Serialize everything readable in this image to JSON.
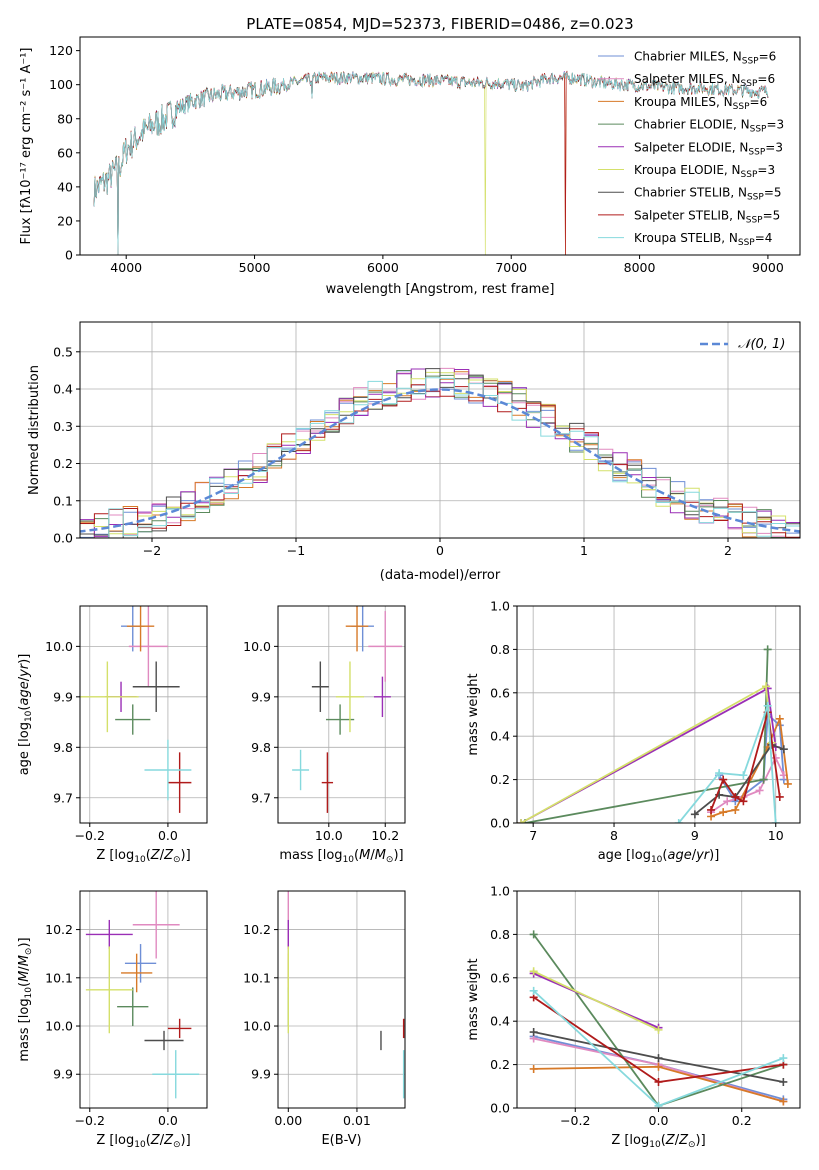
{
  "figure_title": "PLATE=0854, MJD=52373, FIBERID=0486, z=0.023",
  "models": [
    {
      "name": "Chabrier MILES",
      "color": "#6f8fd6",
      "legend": [
        "Chabrier MILES, N",
        "SSP",
        "=6"
      ]
    },
    {
      "name": "Salpeter MILES",
      "color": "#e08ac0",
      "legend": [
        "Salpeter MILES, N",
        "SSP",
        "=6"
      ]
    },
    {
      "name": "Kroupa MILES",
      "color": "#d77a28",
      "legend": [
        "Kroupa MILES, N",
        "SSP",
        "=6"
      ]
    },
    {
      "name": "Chabrier ELODIE",
      "color": "#5b8a5d",
      "legend": [
        "Chabrier ELODIE, N",
        "SSP",
        "=3"
      ]
    },
    {
      "name": "Salpeter ELODIE",
      "color": "#9a2fb6",
      "legend": [
        "Salpeter ELODIE, N",
        "SSP",
        "=3"
      ]
    },
    {
      "name": "Kroupa ELODIE",
      "color": "#d4e06a",
      "legend": [
        "Kroupa ELODIE, N",
        "SSP",
        "=3"
      ]
    },
    {
      "name": "Chabrier STELIB",
      "color": "#4d4d4d",
      "legend": [
        "Chabrier STELIB, N",
        "SSP",
        "=5"
      ]
    },
    {
      "name": "Salpeter STELIB",
      "color": "#b01b1b",
      "legend": [
        "Salpeter STELIB, N",
        "SSP",
        "=5"
      ]
    },
    {
      "name": "Kroupa STELIB",
      "color": "#86d9dd",
      "legend": [
        "Kroupa STELIB, N",
        "SSP",
        "=4"
      ]
    }
  ],
  "chart_data": [
    {
      "id": "spectrum",
      "type": "line",
      "title": "PLATE=0854, MJD=52373, FIBERID=0486, z=0.023",
      "xlabel": "wavelength [Angstrom, rest frame]",
      "ylabel": "Flux [fλ10⁻¹⁷ erg cm⁻² s⁻¹ A⁻¹]",
      "xlim": [
        3640,
        9250
      ],
      "ylim": [
        0,
        128
      ],
      "xticks": [
        4000,
        5000,
        6000,
        7000,
        8000,
        9000
      ],
      "yticks": [
        0,
        20,
        40,
        60,
        80,
        100,
        120
      ],
      "continuum": [
        [
          3750,
          38
        ],
        [
          3850,
          44
        ],
        [
          3950,
          52
        ],
        [
          4000,
          62
        ],
        [
          4100,
          70
        ],
        [
          4200,
          76
        ],
        [
          4300,
          80
        ],
        [
          4400,
          86
        ],
        [
          4500,
          90
        ],
        [
          4700,
          94
        ],
        [
          4900,
          96
        ],
        [
          5100,
          98
        ],
        [
          5300,
          101
        ],
        [
          5500,
          104
        ],
        [
          5700,
          104
        ],
        [
          5900,
          104
        ],
        [
          6100,
          103
        ],
        [
          6300,
          103
        ],
        [
          6500,
          102
        ],
        [
          6700,
          101
        ],
        [
          6900,
          101
        ],
        [
          7100,
          99
        ],
        [
          7300,
          104
        ],
        [
          7500,
          104
        ],
        [
          7700,
          101
        ],
        [
          7900,
          100
        ],
        [
          8100,
          99
        ],
        [
          8300,
          98
        ],
        [
          8500,
          98
        ],
        [
          8700,
          97
        ],
        [
          8900,
          96
        ],
        [
          9000,
          96
        ]
      ],
      "dips": [
        [
          3934,
          0
        ],
        [
          5450,
          92
        ],
        [
          6800,
          0
        ],
        [
          7420,
          0
        ]
      ],
      "legend_loc": "upper right"
    },
    {
      "id": "residuals",
      "type": "histogram",
      "xlabel": "(data-model)/error",
      "ylabel": "Normed distribution",
      "xlim": [
        -2.5,
        2.5
      ],
      "ylim": [
        0,
        0.58
      ],
      "xticks": [
        -2,
        -1,
        0,
        1,
        2
      ],
      "yticks": [
        0.0,
        0.1,
        0.2,
        0.3,
        0.4,
        0.5
      ],
      "bin_width": 0.1,
      "reference_curve": {
        "label": "𝒩(0, 1)",
        "mean": 0,
        "sigma": 1
      },
      "legend_loc": "upper right"
    },
    {
      "id": "age_vs_Z",
      "type": "errorbar",
      "xlabel": "Z [log10(Z/Z⊙)]",
      "ylabel": "age [log10(age/yr)]",
      "xlim": [
        -0.225,
        0.1
      ],
      "ylim": [
        9.65,
        10.08
      ],
      "xticks": [
        -0.2,
        0.0
      ],
      "yticks": [
        9.7,
        9.8,
        9.9,
        10.0
      ],
      "points": [
        {
          "m": 0,
          "x": -0.09,
          "y": 10.04,
          "xerr": 0.03,
          "yerr": 0.05
        },
        {
          "m": 1,
          "x": -0.05,
          "y": 10.0,
          "xerr": 0.05,
          "yerr": 0.08
        },
        {
          "m": 2,
          "x": -0.07,
          "y": 10.04,
          "xerr": 0.035,
          "yerr": 0.05
        },
        {
          "m": 3,
          "x": -0.09,
          "y": 9.855,
          "xerr": 0.045,
          "yerr": 0.03
        },
        {
          "m": 4,
          "x": -0.12,
          "y": 9.9,
          "xerr": 0.04,
          "yerr": 0.03
        },
        {
          "m": 5,
          "x": -0.155,
          "y": 9.9,
          "xerr": 0.08,
          "yerr": 0.07
        },
        {
          "m": 6,
          "x": -0.03,
          "y": 9.92,
          "xerr": 0.06,
          "yerr": 0.05
        },
        {
          "m": 7,
          "x": 0.03,
          "y": 9.73,
          "xerr": 0.03,
          "yerr": 0.06
        },
        {
          "m": 8,
          "x": 0.0,
          "y": 9.755,
          "xerr": 0.06,
          "yerr": 0.06
        }
      ]
    },
    {
      "id": "age_vs_mass",
      "type": "errorbar",
      "xlabel": "mass [log10(M/M⊙)]",
      "ylabel": "",
      "xlim": [
        9.82,
        10.27
      ],
      "ylim": [
        9.65,
        10.08
      ],
      "xticks": [
        10.0,
        10.2
      ],
      "yticks": [
        9.7,
        9.8,
        9.9,
        10.0
      ],
      "points": [
        {
          "m": 0,
          "x": 10.12,
          "y": 10.04,
          "xerr": 0.04,
          "yerr": 0.05
        },
        {
          "m": 1,
          "x": 10.2,
          "y": 10.0,
          "xerr": 0.06,
          "yerr": 0.07
        },
        {
          "m": 2,
          "x": 10.1,
          "y": 10.04,
          "xerr": 0.04,
          "yerr": 0.05
        },
        {
          "m": 3,
          "x": 10.04,
          "y": 9.855,
          "xerr": 0.05,
          "yerr": 0.03
        },
        {
          "m": 4,
          "x": 10.19,
          "y": 9.9,
          "xerr": 0.03,
          "yerr": 0.04
        },
        {
          "m": 5,
          "x": 10.075,
          "y": 9.9,
          "xerr": 0.05,
          "yerr": 0.07
        },
        {
          "m": 6,
          "x": 9.97,
          "y": 9.92,
          "xerr": 0.03,
          "yerr": 0.05
        },
        {
          "m": 7,
          "x": 9.995,
          "y": 9.73,
          "xerr": 0.02,
          "yerr": 0.06
        },
        {
          "m": 8,
          "x": 9.9,
          "y": 9.755,
          "xerr": 0.03,
          "yerr": 0.04
        }
      ]
    },
    {
      "id": "weight_vs_age",
      "type": "line",
      "xlabel": "age [log10(age/yr)]",
      "ylabel": "mass weight",
      "xlim": [
        6.8,
        10.3
      ],
      "ylim": [
        0,
        1.0
      ],
      "xticks": [
        7,
        8,
        9,
        10
      ],
      "yticks": [
        0.0,
        0.2,
        0.4,
        0.6,
        0.8,
        1.0
      ],
      "series": [
        {
          "m": 0,
          "points": [
            [
              9.3,
              0.22
            ],
            [
              9.5,
              0.1
            ],
            [
              9.85,
              0.2
            ],
            [
              9.9,
              0.5
            ],
            [
              10.05,
              0.45
            ],
            [
              10.1,
              0.2
            ]
          ]
        },
        {
          "m": 1,
          "points": [
            [
              9.2,
              0.05
            ],
            [
              9.4,
              0.1
            ],
            [
              9.6,
              0.12
            ],
            [
              9.8,
              0.15
            ],
            [
              10.0,
              0.3
            ],
            [
              10.1,
              0.22
            ]
          ]
        },
        {
          "m": 2,
          "points": [
            [
              9.2,
              0.03
            ],
            [
              9.35,
              0.05
            ],
            [
              9.5,
              0.06
            ],
            [
              9.9,
              0.35
            ],
            [
              10.05,
              0.48
            ],
            [
              10.15,
              0.18
            ]
          ]
        },
        {
          "m": 3,
          "points": [
            [
              6.9,
              0.0
            ],
            [
              9.85,
              0.2
            ],
            [
              9.9,
              0.8
            ]
          ]
        },
        {
          "m": 4,
          "points": [
            [
              6.85,
              0.0
            ],
            [
              9.9,
              0.62
            ],
            [
              10.0,
              0.35
            ]
          ]
        },
        {
          "m": 5,
          "points": [
            [
              6.85,
              0.0
            ],
            [
              9.88,
              0.63
            ],
            [
              9.95,
              0.37
            ]
          ]
        },
        {
          "m": 6,
          "points": [
            [
              9.0,
              0.04
            ],
            [
              9.3,
              0.13
            ],
            [
              9.5,
              0.12
            ],
            [
              9.95,
              0.36
            ],
            [
              10.1,
              0.34
            ]
          ]
        },
        {
          "m": 7,
          "points": [
            [
              9.2,
              0.06
            ],
            [
              9.35,
              0.2
            ],
            [
              9.5,
              0.12
            ],
            [
              9.6,
              0.1
            ],
            [
              9.9,
              0.51
            ],
            [
              10.05,
              0.12
            ]
          ]
        },
        {
          "m": 8,
          "points": [
            [
              8.8,
              0.0
            ],
            [
              9.3,
              0.23
            ],
            [
              9.6,
              0.22
            ],
            [
              9.9,
              0.54
            ],
            [
              10.0,
              0.0
            ]
          ]
        }
      ]
    },
    {
      "id": "mass_vs_Z",
      "type": "errorbar",
      "xlabel": "Z [log10(Z/Z⊙)]",
      "ylabel": "mass [log10(M/M⊙)]",
      "xlim": [
        -0.225,
        0.1
      ],
      "ylim": [
        9.83,
        10.28
      ],
      "xticks": [
        -0.2,
        0.0
      ],
      "yticks": [
        9.9,
        10.0,
        10.1,
        10.2
      ],
      "points": [
        {
          "m": 0,
          "x": -0.07,
          "y": 10.13,
          "xerr": 0.04,
          "yerr": 0.04
        },
        {
          "m": 1,
          "x": -0.03,
          "y": 10.21,
          "xerr": 0.06,
          "yerr": 0.07
        },
        {
          "m": 2,
          "x": -0.08,
          "y": 10.11,
          "xerr": 0.04,
          "yerr": 0.04
        },
        {
          "m": 3,
          "x": -0.09,
          "y": 10.04,
          "xerr": 0.04,
          "yerr": 0.04
        },
        {
          "m": 4,
          "x": -0.15,
          "y": 10.19,
          "xerr": 0.06,
          "yerr": 0.03
        },
        {
          "m": 5,
          "x": -0.15,
          "y": 10.075,
          "xerr": 0.06,
          "yerr": 0.09
        },
        {
          "m": 6,
          "x": -0.01,
          "y": 9.97,
          "xerr": 0.05,
          "yerr": 0.02
        },
        {
          "m": 7,
          "x": 0.03,
          "y": 9.995,
          "xerr": 0.03,
          "yerr": 0.02
        },
        {
          "m": 8,
          "x": 0.02,
          "y": 9.9,
          "xerr": 0.06,
          "yerr": 0.05
        }
      ]
    },
    {
      "id": "mass_vs_EBV",
      "type": "errorbar",
      "xlabel": "E(B-V)",
      "ylabel": "",
      "xlim": [
        -0.0015,
        0.017
      ],
      "ylim": [
        9.83,
        10.28
      ],
      "xticks": [
        0.0,
        0.01
      ],
      "yticks": [
        9.9,
        10.0,
        10.1,
        10.2
      ],
      "points": [
        {
          "m": 0,
          "x": 0.0,
          "y": 10.13,
          "xerr": 0.0,
          "yerr": 0.04
        },
        {
          "m": 1,
          "x": 0.0,
          "y": 10.21,
          "xerr": 0.0,
          "yerr": 0.07
        },
        {
          "m": 2,
          "x": 0.0,
          "y": 10.11,
          "xerr": 0.0,
          "yerr": 0.04
        },
        {
          "m": 3,
          "x": 0.0,
          "y": 10.04,
          "xerr": 0.0,
          "yerr": 0.04
        },
        {
          "m": 4,
          "x": 0.0,
          "y": 10.19,
          "xerr": 0.0,
          "yerr": 0.03
        },
        {
          "m": 5,
          "x": 0.0,
          "y": 10.075,
          "xerr": 0.0,
          "yerr": 0.09
        },
        {
          "m": 6,
          "x": 0.0135,
          "y": 9.97,
          "xerr": 0.0,
          "yerr": 0.02
        },
        {
          "m": 7,
          "x": 0.0168,
          "y": 9.995,
          "xerr": 0.0,
          "yerr": 0.02
        },
        {
          "m": 8,
          "x": 0.0168,
          "y": 9.9,
          "xerr": 0.0,
          "yerr": 0.05
        }
      ]
    },
    {
      "id": "weight_vs_Z",
      "type": "line",
      "xlabel": "Z [log10(Z/Z⊙)]",
      "ylabel": "mass weight",
      "xlim": [
        -0.34,
        0.34
      ],
      "ylim": [
        0,
        1.0
      ],
      "xticks": [
        -0.2,
        0.0,
        0.2
      ],
      "yticks": [
        0.0,
        0.2,
        0.4,
        0.6,
        0.8,
        1.0
      ],
      "series": [
        {
          "m": 0,
          "points": [
            [
              -0.3,
              0.33
            ],
            [
              0.0,
              0.2
            ],
            [
              0.3,
              0.04
            ]
          ]
        },
        {
          "m": 1,
          "points": [
            [
              -0.3,
              0.32
            ],
            [
              0.0,
              0.2
            ],
            [
              0.3,
              0.03
            ]
          ]
        },
        {
          "m": 2,
          "points": [
            [
              -0.3,
              0.18
            ],
            [
              0.0,
              0.19
            ],
            [
              0.3,
              0.03
            ]
          ]
        },
        {
          "m": 3,
          "points": [
            [
              -0.3,
              0.8
            ],
            [
              0.0,
              0.01
            ],
            [
              0.3,
              0.2
            ]
          ]
        },
        {
          "m": 4,
          "points": [
            [
              -0.3,
              0.62
            ],
            [
              0.0,
              0.37
            ]
          ]
        },
        {
          "m": 5,
          "points": [
            [
              -0.3,
              0.63
            ],
            [
              0.0,
              0.36
            ]
          ]
        },
        {
          "m": 6,
          "points": [
            [
              -0.3,
              0.35
            ],
            [
              0.0,
              0.23
            ],
            [
              0.3,
              0.12
            ]
          ]
        },
        {
          "m": 7,
          "points": [
            [
              -0.3,
              0.51
            ],
            [
              0.0,
              0.12
            ],
            [
              0.3,
              0.2
            ]
          ]
        },
        {
          "m": 8,
          "points": [
            [
              -0.3,
              0.54
            ],
            [
              0.0,
              0.01
            ],
            [
              0.3,
              0.23
            ]
          ]
        }
      ]
    }
  ]
}
